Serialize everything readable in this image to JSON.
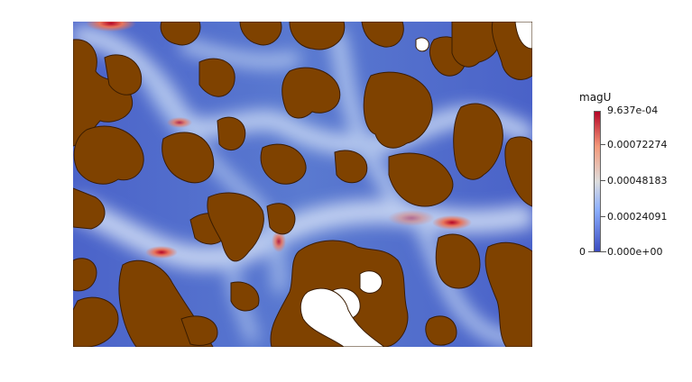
{
  "app": {
    "window": "ParaView render view"
  },
  "field": {
    "name": "magU",
    "solid_color": "#7f4200",
    "fluid_low_color": "#3b4cc0",
    "fluid_high_color": "#b40426"
  },
  "legend": {
    "title": "magU",
    "max_label": "9.637e-04",
    "min_label": "0.000e+00",
    "range_left_label": "0",
    "ticks": [
      "0.00072274",
      "0.00048183",
      "0.00024091"
    ],
    "tick_values": [
      0.00072274,
      0.00048183,
      0.00024091
    ],
    "max_value": 0.0009637,
    "min_value": 0.0
  }
}
